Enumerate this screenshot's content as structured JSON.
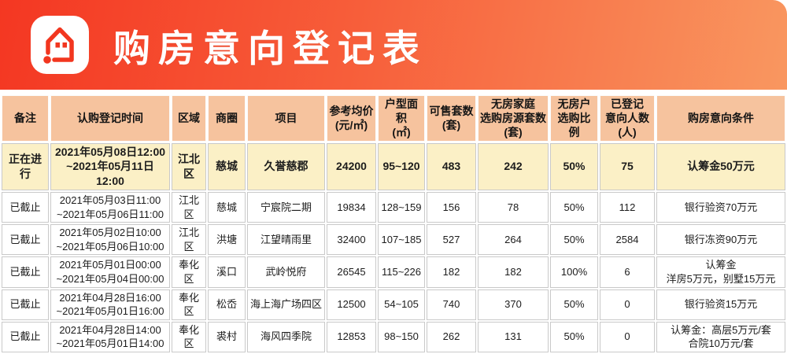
{
  "banner": {
    "title": "购房意向登记表",
    "logo": "house-icon"
  },
  "colors": {
    "banner_gradient_left": "#f43722",
    "banner_gradient_right": "#f99760",
    "logo_accent": "#f2361f",
    "header_bg": "#f6c39e",
    "active_row_bg": "#fbf0c6",
    "cell_border": "#c9c9c9",
    "text": "#1c1c1c"
  },
  "chart_data": {
    "type": "table",
    "title": "购房意向登记表",
    "columns": [
      {
        "key": "remark",
        "label": "备注"
      },
      {
        "key": "time",
        "label": "认购登记时间"
      },
      {
        "key": "district",
        "label": "区域"
      },
      {
        "key": "circle",
        "label": "商圈"
      },
      {
        "key": "project",
        "label": "项目"
      },
      {
        "key": "price",
        "label": "参考均价\n(元/㎡)"
      },
      {
        "key": "size",
        "label": "户型面积\n(㎡)"
      },
      {
        "key": "sellable",
        "label": "可售套数\n(套)"
      },
      {
        "key": "nohome-units",
        "label": "无房家庭\n选购房源套数\n(套)"
      },
      {
        "key": "nohome-ratio",
        "label": "无房户\n选购比例"
      },
      {
        "key": "registered",
        "label": "已登记\n意向人数\n(人)"
      },
      {
        "key": "condition",
        "label": "购房意向条件"
      }
    ],
    "rows": [
      {
        "active": true,
        "cells": [
          "正在进行",
          "2021年05月08日12:00\n~2021年05月11日12:00",
          "江北区",
          "慈城",
          "久誉慈郡",
          "24200",
          "95~120",
          "483",
          "242",
          "50%",
          "75",
          "认筹金50万元"
        ]
      },
      {
        "active": false,
        "cells": [
          "已截止",
          "2021年05月03日11:00\n~2021年05月06日11:00",
          "江北区",
          "慈城",
          "宁宸院二期",
          "19834",
          "128~159",
          "156",
          "78",
          "50%",
          "112",
          "银行验资70万元"
        ]
      },
      {
        "active": false,
        "cells": [
          "已截止",
          "2021年05月02日10:00\n~2021年05月06日10:00",
          "江北区",
          "洪塘",
          "江望晴雨里",
          "32400",
          "107~185",
          "527",
          "264",
          "50%",
          "2584",
          "银行冻资90万元"
        ]
      },
      {
        "active": false,
        "cells": [
          "已截止",
          "2021年05月01日00:00\n~2021年05月04日00:00",
          "奉化区",
          "溪口",
          "武岭悦府",
          "26545",
          "115~226",
          "182",
          "182",
          "100%",
          "6",
          "认筹金\n洋房5万元，别墅15万元"
        ]
      },
      {
        "active": false,
        "cells": [
          "已截止",
          "2021年04月28日16:00\n~2021年05月01日16:00",
          "奉化区",
          "松岙",
          "海上海广场四区",
          "12500",
          "54~105",
          "740",
          "370",
          "50%",
          "0",
          "银行验资15万元"
        ]
      },
      {
        "active": false,
        "cells": [
          "已截止",
          "2021年04月28日14:00\n~2021年05月01日14:00",
          "奉化区",
          "裘村",
          "海风四季院",
          "12853",
          "98~150",
          "262",
          "131",
          "50%",
          "0",
          "认筹金：高层5万元/套\n合院10万元/套"
        ]
      }
    ]
  }
}
